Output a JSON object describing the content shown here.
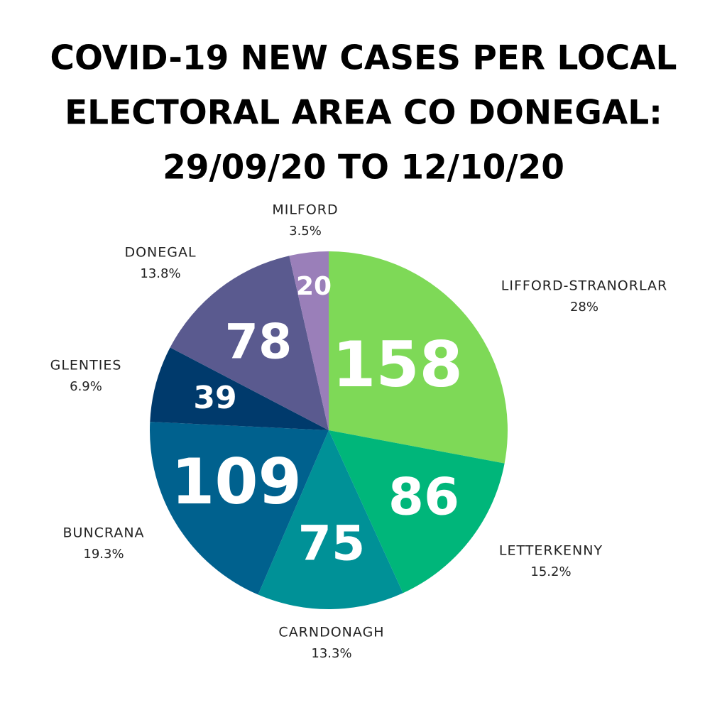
{
  "chart_data": {
    "type": "pie",
    "title": [
      "COVID-19 NEW CASES PER LOCAL",
      "ELECTORAL AREA CO DONEGAL:",
      "29/09/20 TO 12/10/20"
    ],
    "categories": [
      "LIFFORD-STRANORLAR",
      "LETTERKENNY",
      "CARNDONAGH",
      "BUNCRANA",
      "GLENTIES",
      "DONEGAL",
      "MILFORD"
    ],
    "values": [
      158,
      86,
      75,
      109,
      39,
      78,
      20
    ],
    "percent_labels": [
      "28%",
      "15.2%",
      "13.3%",
      "19.3%",
      "6.9%",
      "13.8%",
      "3.5%"
    ],
    "colors": [
      "#7ed957",
      "#00b67a",
      "#009197",
      "#00618e",
      "#003a6c",
      "#5a5a8f",
      "#9a7fb9"
    ]
  }
}
